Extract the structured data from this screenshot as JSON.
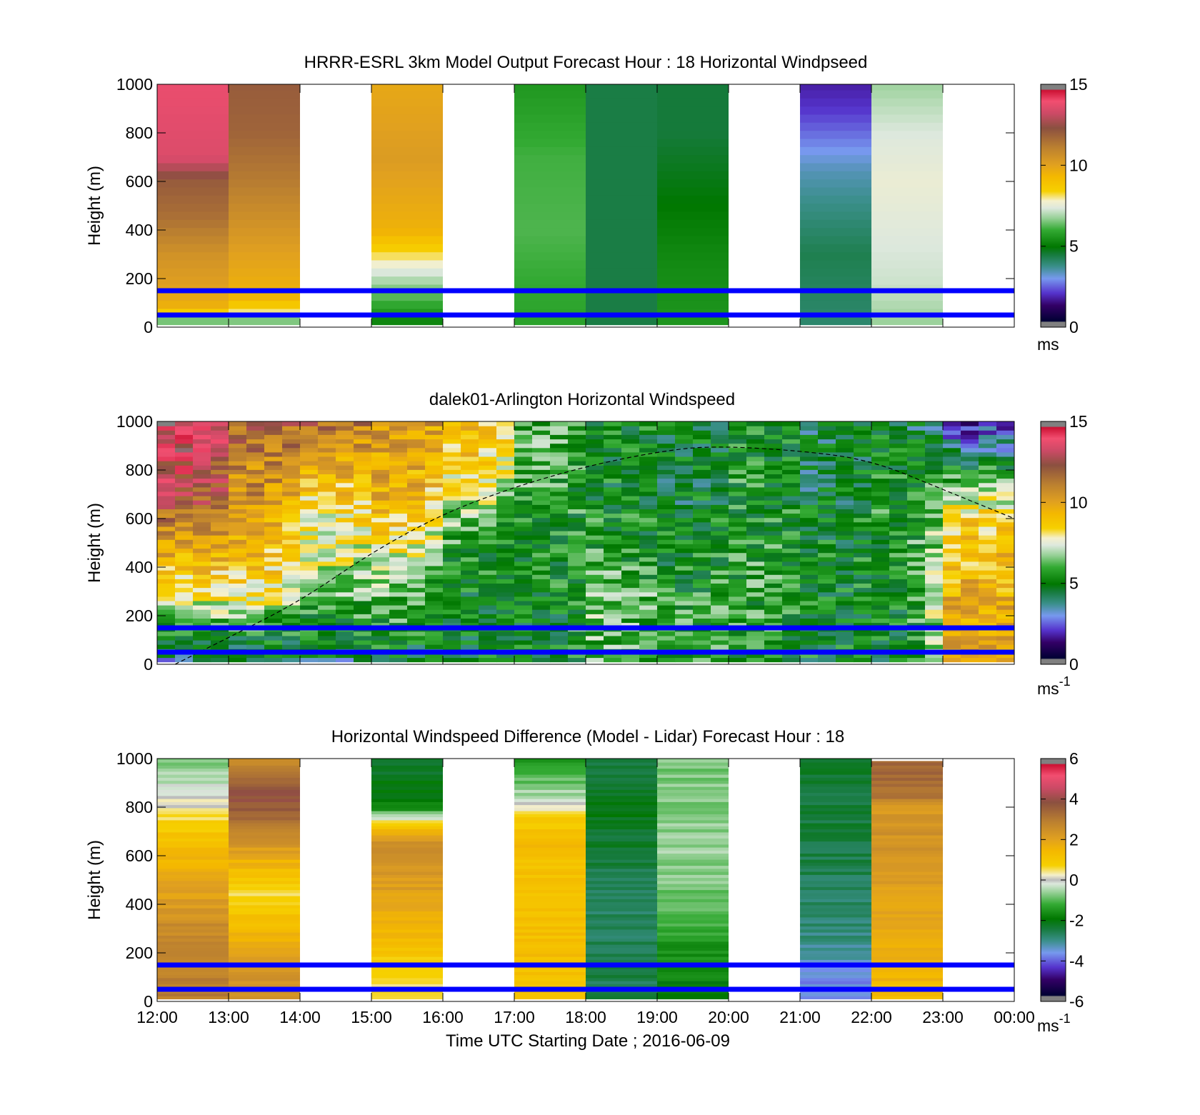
{
  "chart_data": [
    {
      "type": "heatmap",
      "title": "HRRR-ESRL 3km Model Output   Forecast Hour : 18 Horizontal Windpseed",
      "ylabel": "Height (m)",
      "xlim": [
        "12:00",
        "00:00"
      ],
      "ylim": [
        0,
        1000
      ],
      "yticks": [
        0,
        200,
        400,
        600,
        800,
        1000
      ],
      "colorbar": {
        "min": 0,
        "max": 15,
        "ticks": [
          0,
          5,
          10,
          15
        ],
        "unit": "ms",
        "scale": "wind"
      },
      "reference_lines_m": [
        150,
        50
      ],
      "columns": [
        {
          "start": "12:00",
          "end": "13:00",
          "profile": [
            [
              0,
              4.5
            ],
            [
              40,
              7.5
            ],
            [
              80,
              9.5
            ],
            [
              150,
              10
            ],
            [
              300,
              10.5
            ],
            [
              450,
              11.5
            ],
            [
              600,
              12
            ],
            [
              700,
              13.5
            ],
            [
              1000,
              13.8
            ]
          ]
        },
        {
          "start": "13:00",
          "end": "14:00",
          "profile": [
            [
              0,
              4.5
            ],
            [
              40,
              7.6
            ],
            [
              130,
              9.5
            ],
            [
              300,
              10
            ],
            [
              450,
              10.6
            ],
            [
              600,
              11.2
            ],
            [
              800,
              11.8
            ],
            [
              1000,
              12
            ]
          ]
        },
        {
          "start": "15:00",
          "end": "16:00",
          "profile": [
            [
              0,
              5
            ],
            [
              100,
              6
            ],
            [
              200,
              7
            ],
            [
              300,
              8.2
            ],
            [
              400,
              9.5
            ],
            [
              700,
              10.2
            ],
            [
              1000,
              9.8
            ]
          ]
        },
        {
          "start": "17:00",
          "end": "18:00",
          "profile": [
            [
              0,
              5.8
            ],
            [
              400,
              6.2
            ],
            [
              700,
              6.1
            ],
            [
              1000,
              5.6
            ]
          ]
        },
        {
          "start": "18:00",
          "end": "19:00",
          "profile": [
            [
              0,
              4.4
            ],
            [
              1000,
              4.4
            ]
          ]
        },
        {
          "start": "19:00",
          "end": "20:00",
          "profile": [
            [
              0,
              5.6
            ],
            [
              300,
              5.3
            ],
            [
              600,
              4.8
            ],
            [
              800,
              4.5
            ],
            [
              1000,
              4.5
            ]
          ]
        },
        {
          "start": "21:00",
          "end": "22:00",
          "profile": [
            [
              0,
              4
            ],
            [
              300,
              4.3
            ],
            [
              500,
              3.8
            ],
            [
              650,
              3.4
            ],
            [
              800,
              2.6
            ],
            [
              900,
              2.1
            ],
            [
              1000,
              1.8
            ]
          ]
        },
        {
          "start": "22:00",
          "end": "23:00",
          "profile": [
            [
              0,
              6.7
            ],
            [
              180,
              7.2
            ],
            [
              600,
              7.6
            ],
            [
              800,
              7.35
            ],
            [
              1000,
              6.8
            ]
          ]
        }
      ]
    },
    {
      "type": "heatmap",
      "title": "dalek01-Arlington  Horizontal Windspeed",
      "ylabel": "Height (m)",
      "xlim": [
        "12:00",
        "00:00"
      ],
      "ylim": [
        0,
        1000
      ],
      "yticks": [
        0,
        200,
        400,
        600,
        800,
        1000
      ],
      "colorbar": {
        "min": 0,
        "max": 15,
        "ticks": [
          0,
          5,
          10,
          15
        ],
        "unit": "ms",
        "unit_sup": "-1",
        "scale": "wind"
      },
      "reference_lines_m": [
        150,
        50
      ],
      "boundary_layer_curve": [
        [
          "12:15",
          0
        ],
        [
          "13:00",
          110
        ],
        [
          "14:00",
          260
        ],
        [
          "15:00",
          460
        ],
        [
          "16:00",
          620
        ],
        [
          "17:00",
          730
        ],
        [
          "18:00",
          815
        ],
        [
          "19:00",
          875
        ],
        [
          "19:45",
          900
        ],
        [
          "21:00",
          880
        ],
        [
          "22:00",
          840
        ],
        [
          "23:00",
          720
        ],
        [
          "00:00",
          600
        ]
      ],
      "profiles": [
        {
          "start": "12:00",
          "end": "13:00",
          "profile": [
            [
              0,
              3
            ],
            [
              40,
              4.5
            ],
            [
              150,
              5.5
            ],
            [
              250,
              7.5
            ],
            [
              400,
              9
            ],
            [
              600,
              11.5
            ],
            [
              750,
              13
            ],
            [
              1000,
              13.8
            ]
          ]
        },
        {
          "start": "13:00",
          "end": "14:00",
          "profile": [
            [
              0,
              3.5
            ],
            [
              40,
              4.5
            ],
            [
              150,
              5.5
            ],
            [
              280,
              7.8
            ],
            [
              450,
              9.2
            ],
            [
              650,
              10.5
            ],
            [
              800,
              10.8
            ],
            [
              1000,
              11.8
            ]
          ]
        },
        {
          "start": "14:00",
          "end": "15:00",
          "profile": [
            [
              0,
              3.5
            ],
            [
              40,
              4.6
            ],
            [
              150,
              5.2
            ],
            [
              300,
              6.5
            ],
            [
              450,
              7.3
            ],
            [
              600,
              7.8
            ],
            [
              800,
              9.5
            ],
            [
              1000,
              11.8
            ]
          ]
        },
        {
          "start": "15:00",
          "end": "16:00",
          "profile": [
            [
              0,
              4
            ],
            [
              40,
              4.8
            ],
            [
              200,
              5.8
            ],
            [
              400,
              7
            ],
            [
              550,
              8.5
            ],
            [
              700,
              9.5
            ],
            [
              1000,
              10.5
            ]
          ]
        },
        {
          "start": "16:00",
          "end": "17:00",
          "profile": [
            [
              0,
              5
            ],
            [
              150,
              4.8
            ],
            [
              400,
              5.3
            ],
            [
              600,
              6.5
            ],
            [
              800,
              8.5
            ],
            [
              1000,
              9.5
            ]
          ]
        },
        {
          "start": "17:00",
          "end": "18:00",
          "profile": [
            [
              0,
              5
            ],
            [
              300,
              5
            ],
            [
              600,
              5.5
            ],
            [
              800,
              6.2
            ],
            [
              1000,
              6
            ]
          ]
        },
        {
          "start": "18:00",
          "end": "19:00",
          "profile": [
            [
              0,
              6
            ],
            [
              250,
              6.5
            ],
            [
              500,
              5.5
            ],
            [
              800,
              5
            ],
            [
              1000,
              5.2
            ]
          ]
        },
        {
          "start": "19:00",
          "end": "20:00",
          "profile": [
            [
              0,
              6
            ],
            [
              300,
              5.5
            ],
            [
              600,
              4.8
            ],
            [
              800,
              4.6
            ],
            [
              1000,
              4.8
            ]
          ]
        },
        {
          "start": "20:00",
          "end": "21:00",
          "profile": [
            [
              0,
              5.5
            ],
            [
              300,
              5.8
            ],
            [
              600,
              5.5
            ],
            [
              900,
              5.5
            ],
            [
              1000,
              5.5
            ]
          ]
        },
        {
          "start": "21:00",
          "end": "22:00",
          "profile": [
            [
              0,
              5
            ],
            [
              400,
              5.2
            ],
            [
              700,
              4.6
            ],
            [
              900,
              4.5
            ],
            [
              1000,
              4.2
            ]
          ]
        },
        {
          "start": "22:00",
          "end": "23:00",
          "profile": [
            [
              0,
              5
            ],
            [
              300,
              5
            ],
            [
              600,
              5.5
            ],
            [
              800,
              5.2
            ],
            [
              1000,
              4.8
            ]
          ]
        },
        {
          "start": "23:00",
          "end": "00:00",
          "profile": [
            [
              0,
              9.5
            ],
            [
              200,
              9.8
            ],
            [
              400,
              9.2
            ],
            [
              600,
              8.5
            ],
            [
              800,
              5.5
            ],
            [
              900,
              3.5
            ],
            [
              1000,
              1.8
            ]
          ]
        }
      ]
    },
    {
      "type": "heatmap",
      "title": "Horizontal Windspeed Difference (Model - Lidar) Forecast Hour : 18",
      "xlabel": "Time UTC  Starting Date ; 2016-06-09",
      "ylabel": "Height (m)",
      "xticks": [
        "12:00",
        "13:00",
        "14:00",
        "15:00",
        "16:00",
        "17:00",
        "18:00",
        "19:00",
        "20:00",
        "21:00",
        "22:00",
        "23:00",
        "00:00"
      ],
      "ylim": [
        0,
        1000
      ],
      "yticks": [
        0,
        200,
        400,
        600,
        800,
        1000
      ],
      "colorbar": {
        "min": -6,
        "max": 6,
        "ticks": [
          -6,
          -4,
          -2,
          0,
          2,
          4,
          6
        ],
        "unit": "ms",
        "unit_sup": "-1",
        "scale": "diff"
      },
      "reference_lines_m": [
        150,
        50
      ],
      "columns": [
        {
          "start": "12:00",
          "end": "13:00",
          "profile": [
            [
              0,
              3
            ],
            [
              150,
              2.8
            ],
            [
              300,
              2.6
            ],
            [
              500,
              1.8
            ],
            [
              650,
              1.3
            ],
            [
              750,
              0.6
            ],
            [
              880,
              -0.3
            ],
            [
              1000,
              -0.8
            ]
          ]
        },
        {
          "start": "13:00",
          "end": "14:00",
          "profile": [
            [
              0,
              2.6
            ],
            [
              150,
              2.2
            ],
            [
              350,
              1.2
            ],
            [
              450,
              0.6
            ],
            [
              600,
              1.8
            ],
            [
              750,
              3.4
            ],
            [
              850,
              3.9
            ],
            [
              1000,
              2.5
            ]
          ]
        },
        {
          "start": "15:00",
          "end": "16:00",
          "profile": [
            [
              0,
              0.4
            ],
            [
              150,
              0.8
            ],
            [
              300,
              1.5
            ],
            [
              500,
              2.2
            ],
            [
              650,
              2.5
            ],
            [
              730,
              0.8
            ],
            [
              800,
              -1.8
            ],
            [
              1000,
              -2.3
            ]
          ]
        },
        {
          "start": "17:00",
          "end": "18:00",
          "profile": [
            [
              0,
              1
            ],
            [
              200,
              1.3
            ],
            [
              500,
              1.1
            ],
            [
              650,
              1.3
            ],
            [
              750,
              0.9
            ],
            [
              850,
              -0.5
            ],
            [
              950,
              -1.2
            ],
            [
              1000,
              -1.8
            ]
          ]
        },
        {
          "start": "18:00",
          "end": "19:00",
          "profile": [
            [
              0,
              -2.5
            ],
            [
              400,
              -2.7
            ],
            [
              600,
              -2.4
            ],
            [
              800,
              -2.1
            ],
            [
              1000,
              -2.4
            ]
          ]
        },
        {
          "start": "19:00",
          "end": "20:00",
          "profile": [
            [
              0,
              -2
            ],
            [
              200,
              -1.6
            ],
            [
              400,
              -0.9
            ],
            [
              600,
              -0.6
            ],
            [
              800,
              -0.7
            ],
            [
              1000,
              -0.8
            ]
          ]
        },
        {
          "start": "21:00",
          "end": "22:00",
          "profile": [
            [
              0,
              -3.8
            ],
            [
              100,
              -3.6
            ],
            [
              200,
              -3.2
            ],
            [
              300,
              -2.8
            ],
            [
              500,
              -2.6
            ],
            [
              700,
              -2.4
            ],
            [
              1000,
              -2.3
            ]
          ]
        },
        {
          "start": "22:00",
          "end": "23:00",
          "profile": [
            [
              0,
              1.2
            ],
            [
              100,
              1.5
            ],
            [
              400,
              2
            ],
            [
              700,
              2.4
            ],
            [
              800,
              2.2
            ],
            [
              850,
              3.2
            ],
            [
              990,
              3.4
            ]
          ]
        }
      ]
    }
  ]
}
